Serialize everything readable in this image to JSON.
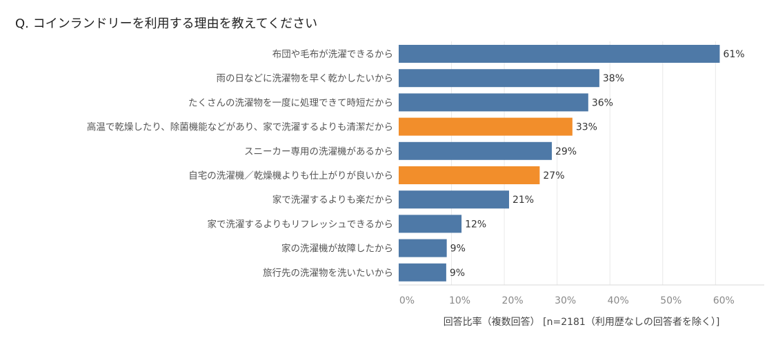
{
  "chart_data": {
    "type": "bar",
    "orientation": "horizontal",
    "title": "Q. コインランドリーを利用する理由を教えてください",
    "xlabel": "回答比率（複数回答） [n=2181（利用歴なしの回答者を除く）]",
    "ylabel": "",
    "xlim": [
      0,
      70
    ],
    "ticks": [
      0,
      10,
      20,
      30,
      40,
      50,
      60
    ],
    "tick_labels": [
      "0%",
      "10%",
      "20%",
      "30%",
      "40%",
      "50%",
      "60%"
    ],
    "grid": true,
    "categories": [
      "布団や毛布が洗濯できるから",
      "雨の日などに洗濯物を早く乾かしたいから",
      "たくさんの洗濯物を一度に処理できて時短だから",
      "高温で乾燥したり、除菌機能などがあり、家で洗濯するよりも清潔だから",
      "スニーカー専用の洗濯機があるから",
      "自宅の洗濯機／乾燥機よりも仕上がりが良いから",
      "家で洗濯するよりも楽だから",
      "家で洗濯するよりもリフレッシュできるから",
      "家の洗濯機が故障したから",
      "旅行先の洗濯物を洗いたいから"
    ],
    "values": [
      60.8,
      38.0,
      35.9,
      32.9,
      29.0,
      26.7,
      20.9,
      11.9,
      9.1,
      9.0
    ],
    "value_labels": [
      "61%",
      "38%",
      "36%",
      "33%",
      "29%",
      "27%",
      "21%",
      "12%",
      "9%",
      "9%"
    ],
    "highlighted": [
      false,
      false,
      false,
      true,
      false,
      true,
      false,
      false,
      false,
      false
    ],
    "colors": {
      "default": "#4e79a7",
      "highlight": "#f28e2b",
      "grid": "#e8e8e8",
      "axis": "#d8d8d8"
    }
  }
}
